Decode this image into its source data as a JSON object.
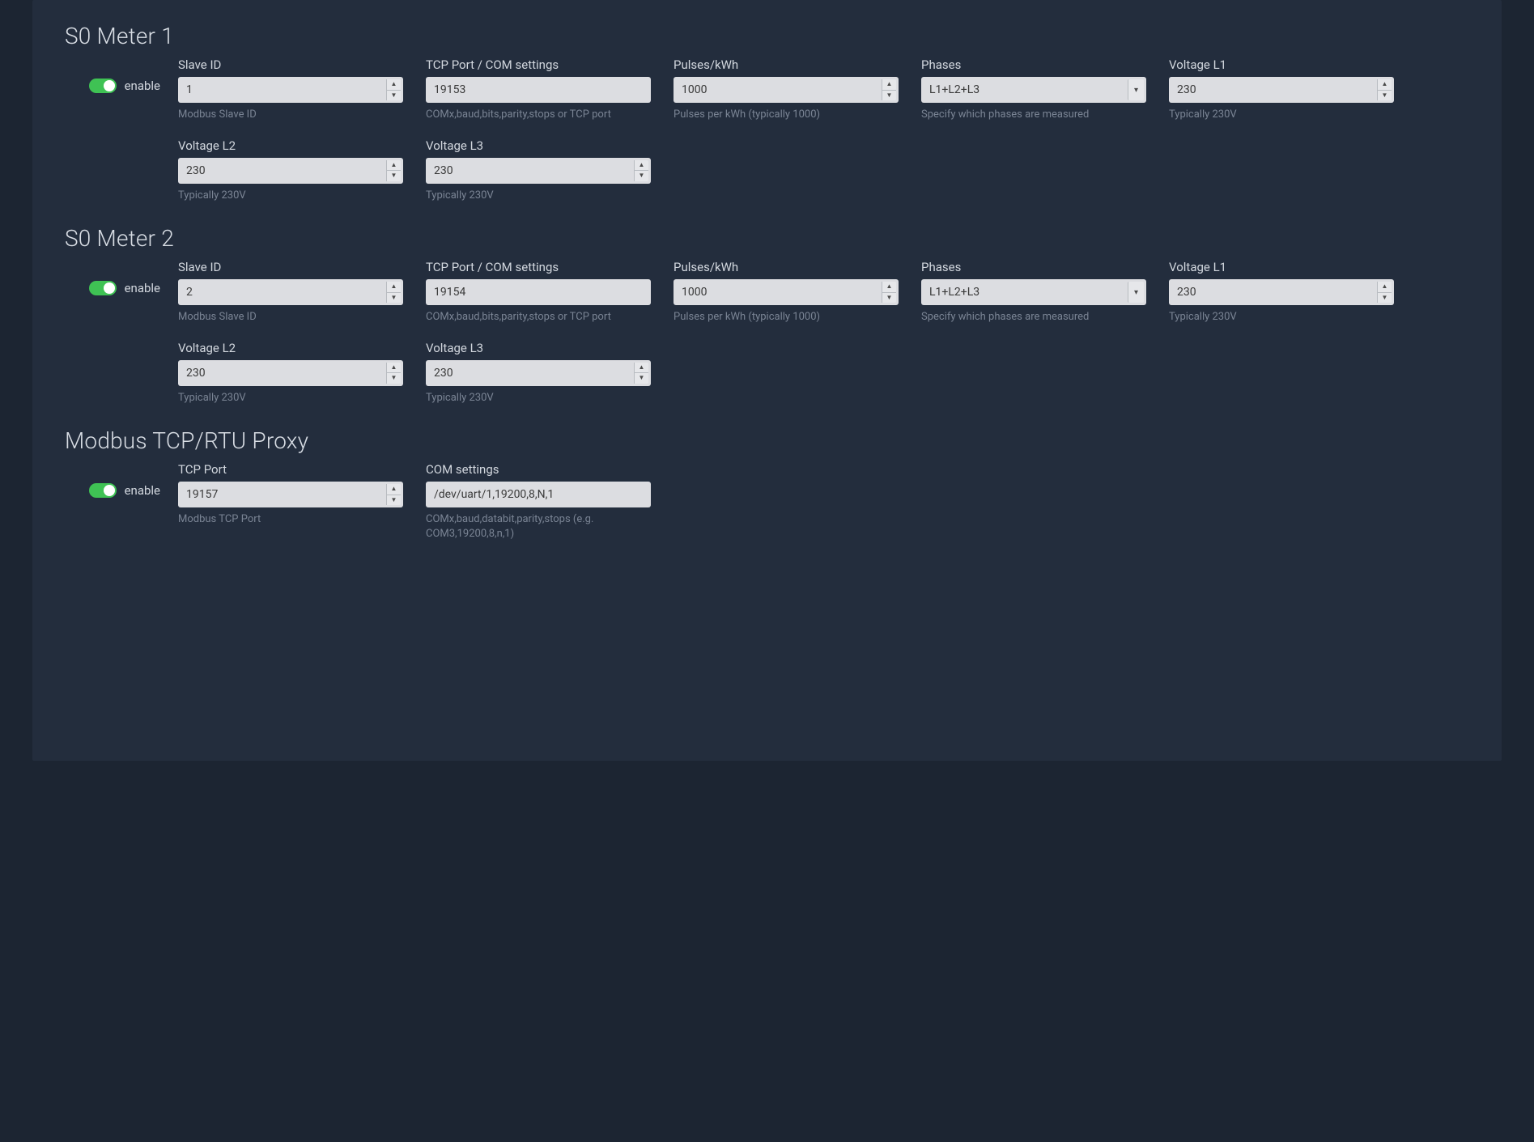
{
  "colors": {
    "page_bg": "#1c2532",
    "panel_bg": "#232d3d",
    "input_bg": "#dcdde1",
    "text_primary": "#d2d7de",
    "text_muted": "#7a8494",
    "toggle_on": "#3fc254"
  },
  "labels": {
    "enable": "enable",
    "slave_id": "Slave ID",
    "slave_id_help": "Modbus Slave ID",
    "tcp_com": "TCP Port / COM settings",
    "tcp_com_help": "COMx,baud,bits,parity,stops or TCP port",
    "pulses_kwh": "Pulses/kWh",
    "pulses_kwh_help": "Pulses per kWh (typically 1000)",
    "phases": "Phases",
    "phases_help": "Specify which phases are measured",
    "voltage_l1": "Voltage L1",
    "voltage_l2": "Voltage L2",
    "voltage_l3": "Voltage L3",
    "voltage_help": "Typically 230V",
    "tcp_port": "TCP Port",
    "tcp_port_help": "Modbus TCP Port",
    "com_settings": "COM settings",
    "com_settings_help": "COMx,baud,databit,parity,stops (e.g. COM3,19200,8,n,1)"
  },
  "meter1": {
    "title": "S0 Meter 1",
    "enabled": true,
    "slave_id": "1",
    "tcp_com": "19153",
    "pulses_kwh": "1000",
    "phases": "L1+L2+L3",
    "voltage_l1": "230",
    "voltage_l2": "230",
    "voltage_l3": "230"
  },
  "meter2": {
    "title": "S0 Meter 2",
    "enabled": true,
    "slave_id": "2",
    "tcp_com": "19154",
    "pulses_kwh": "1000",
    "phases": "L1+L2+L3",
    "voltage_l1": "230",
    "voltage_l2": "230",
    "voltage_l3": "230"
  },
  "proxy": {
    "title": "Modbus TCP/RTU Proxy",
    "enabled": true,
    "tcp_port": "19157",
    "com_settings": "/dev/uart/1,19200,8,N,1"
  }
}
